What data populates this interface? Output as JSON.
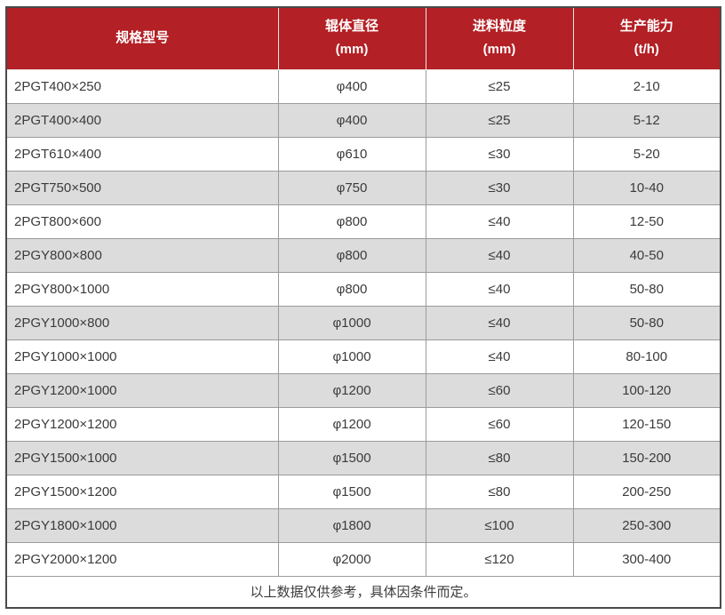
{
  "colors": {
    "header_bg": "#b32025",
    "header_text": "#ffffff",
    "row_bg": "#ffffff",
    "row_alt_bg": "#dcdcdc",
    "grid_line": "#9b9b9b",
    "outer_border": "#4a4a4a",
    "text": "#3b3b3b"
  },
  "table": {
    "columns": [
      {
        "label": "规格型号",
        "unit": ""
      },
      {
        "label": "辊体直径",
        "unit": "(mm)"
      },
      {
        "label": "进料粒度",
        "unit": "(mm)"
      },
      {
        "label": "生产能力",
        "unit": "(t/h)"
      }
    ],
    "rows": [
      [
        "2PGT400×250",
        "φ400",
        "≤25",
        "2-10"
      ],
      [
        "2PGT400×400",
        "φ400",
        "≤25",
        "5-12"
      ],
      [
        "2PGT610×400",
        "φ610",
        "≤30",
        "5-20"
      ],
      [
        "2PGT750×500",
        "φ750",
        "≤30",
        "10-40"
      ],
      [
        "2PGT800×600",
        "φ800",
        "≤40",
        "12-50"
      ],
      [
        "2PGY800×800",
        "φ800",
        "≤40",
        "40-50"
      ],
      [
        "2PGY800×1000",
        "φ800",
        "≤40",
        "50-80"
      ],
      [
        "2PGY1000×800",
        "φ1000",
        "≤40",
        "50-80"
      ],
      [
        "2PGY1000×1000",
        "φ1000",
        "≤40",
        "80-100"
      ],
      [
        "2PGY1200×1000",
        "φ1200",
        "≤60",
        "100-120"
      ],
      [
        "2PGY1200×1200",
        "φ1200",
        "≤60",
        "120-150"
      ],
      [
        "2PGY1500×1000",
        "φ1500",
        "≤80",
        "150-200"
      ],
      [
        "2PGY1500×1200",
        "φ1500",
        "≤80",
        "200-250"
      ],
      [
        "2PGY1800×1000",
        "φ1800",
        "≤100",
        "250-300"
      ],
      [
        "2PGY2000×1200",
        "φ2000",
        "≤120",
        "300-400"
      ]
    ],
    "footnote": "以上数据仅供参考，具体因条件而定。"
  }
}
